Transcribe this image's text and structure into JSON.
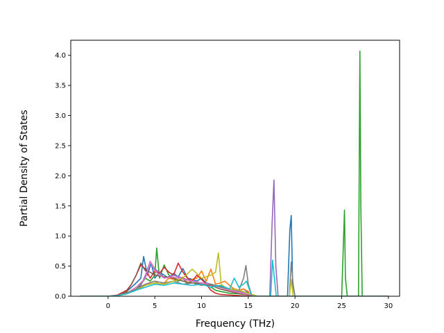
{
  "chart_data": {
    "type": "line",
    "xlabel": "Frequency (THz)",
    "ylabel": "Partial Density of States",
    "xlim": [
      -4.0,
      31.2
    ],
    "ylim": [
      0.0,
      4.25
    ],
    "xticks": [
      0,
      5,
      10,
      15,
      20,
      25,
      30
    ],
    "yticks": [
      0.0,
      0.5,
      1.0,
      1.5,
      2.0,
      2.5,
      3.0,
      3.5,
      4.0
    ],
    "xtick_labels": [
      "0",
      "5",
      "10",
      "15",
      "20",
      "25",
      "30"
    ],
    "ytick_labels": [
      "0.0",
      "0.5",
      "1.0",
      "1.5",
      "2.0",
      "2.5",
      "3.0",
      "3.5",
      "4.0"
    ],
    "grid": false,
    "legend": "none",
    "series": [
      {
        "color": "#1f77b4",
        "x": [
          -3.0,
          0.0,
          1.0,
          2.0,
          2.5,
          3.0,
          3.5,
          3.8,
          4.2,
          4.6,
          5.0,
          5.5,
          6.0,
          6.5,
          7.0,
          7.5,
          8.0,
          8.5,
          9.0,
          9.5,
          10.0,
          10.5,
          11.0,
          11.5,
          12.0,
          12.5,
          13.0,
          13.5,
          14.0,
          14.5,
          15.0,
          15.3,
          16.0,
          19.2,
          19.45,
          19.6,
          19.75,
          20.0,
          30.0
        ],
        "y": [
          0,
          0,
          0.01,
          0.08,
          0.15,
          0.22,
          0.3,
          0.66,
          0.35,
          0.55,
          0.3,
          0.4,
          0.35,
          0.3,
          0.38,
          0.32,
          0.46,
          0.3,
          0.28,
          0.25,
          0.3,
          0.22,
          0.2,
          0.18,
          0.17,
          0.15,
          0.12,
          0.12,
          0.1,
          0.12,
          0.06,
          0.0,
          0,
          0,
          1.1,
          1.34,
          0.2,
          0,
          0
        ]
      },
      {
        "color": "#ff7f0e",
        "x": [
          -3.0,
          0.0,
          1.0,
          2.0,
          3.0,
          3.5,
          4.0,
          4.5,
          5.0,
          5.5,
          6.0,
          6.5,
          7.0,
          7.5,
          8.0,
          8.5,
          9.0,
          9.5,
          10.0,
          10.5,
          11.0,
          11.5,
          12.0,
          12.5,
          13.0,
          13.5,
          14.0,
          14.5,
          15.0,
          15.3,
          16.0,
          30.0
        ],
        "y": [
          0,
          0,
          0.01,
          0.05,
          0.12,
          0.15,
          0.2,
          0.22,
          0.25,
          0.2,
          0.22,
          0.3,
          0.28,
          0.25,
          0.32,
          0.2,
          0.28,
          0.3,
          0.42,
          0.25,
          0.45,
          0.2,
          0.22,
          0.25,
          0.18,
          0.12,
          0.1,
          0.12,
          0.08,
          0.0,
          0,
          0
        ]
      },
      {
        "color": "#2ca02c",
        "x": [
          -3.0,
          0.0,
          1.0,
          2.0,
          3.0,
          3.5,
          4.0,
          4.5,
          5.0,
          5.2,
          5.5,
          6.0,
          6.5,
          7.0,
          7.5,
          8.0,
          8.5,
          9.0,
          9.5,
          10.0,
          10.5,
          11.0,
          11.5,
          12.0,
          13.0,
          14.0,
          15.0,
          16.0,
          25.0,
          25.3,
          25.4,
          25.6,
          26.0,
          26.8,
          26.95,
          27.05,
          27.2,
          27.5,
          30.0
        ],
        "y": [
          0,
          0,
          0.01,
          0.06,
          0.12,
          0.2,
          0.3,
          0.25,
          0.35,
          0.8,
          0.3,
          0.52,
          0.35,
          0.3,
          0.25,
          0.3,
          0.2,
          0.25,
          0.22,
          0.2,
          0.18,
          0.15,
          0.1,
          0.08,
          0.05,
          0.04,
          0.02,
          0,
          0,
          1.43,
          0.3,
          0,
          0,
          0,
          4.07,
          1.5,
          0,
          0,
          0
        ]
      },
      {
        "color": "#d62728",
        "x": [
          -3.0,
          0.0,
          1.0,
          2.0,
          2.5,
          3.0,
          3.5,
          4.0,
          4.5,
          5.0,
          5.5,
          6.0,
          6.5,
          7.0,
          7.5,
          8.0,
          8.5,
          9.0,
          9.5,
          10.0,
          10.5,
          11.0,
          11.5,
          12.0,
          13.0,
          14.0,
          15.0,
          16.0,
          30.0
        ],
        "y": [
          0,
          0,
          0.02,
          0.1,
          0.2,
          0.35,
          0.52,
          0.45,
          0.3,
          0.42,
          0.38,
          0.48,
          0.4,
          0.35,
          0.55,
          0.4,
          0.3,
          0.25,
          0.35,
          0.28,
          0.2,
          0.1,
          0.05,
          0.03,
          0.02,
          0.01,
          0.0,
          0,
          0
        ]
      },
      {
        "color": "#9467bd",
        "x": [
          -3.0,
          0.0,
          1.0,
          2.0,
          3.0,
          3.5,
          4.0,
          4.5,
          5.0,
          5.5,
          6.0,
          7.0,
          8.0,
          9.0,
          10.0,
          11.0,
          12.0,
          13.0,
          14.0,
          15.0,
          16.0,
          17.3,
          17.55,
          17.75,
          17.95,
          18.2,
          30.0
        ],
        "y": [
          0,
          0,
          0.01,
          0.05,
          0.12,
          0.18,
          0.35,
          0.58,
          0.45,
          0.4,
          0.3,
          0.35,
          0.3,
          0.25,
          0.22,
          0.2,
          0.15,
          0.1,
          0.08,
          0.05,
          0,
          0,
          1.2,
          1.93,
          0.5,
          0,
          0
        ]
      },
      {
        "color": "#8c564b",
        "x": [
          -3.0,
          0.0,
          1.0,
          2.0,
          2.5,
          3.0,
          3.5,
          4.0,
          4.5,
          5.0,
          6.0,
          7.0,
          8.0,
          9.0,
          10.0,
          11.0,
          12.0,
          13.0,
          14.0,
          15.0,
          16.0,
          30.0
        ],
        "y": [
          0,
          0,
          0.01,
          0.08,
          0.2,
          0.35,
          0.55,
          0.42,
          0.4,
          0.35,
          0.32,
          0.3,
          0.25,
          0.22,
          0.2,
          0.18,
          0.12,
          0.08,
          0.05,
          0.02,
          0,
          0
        ]
      },
      {
        "color": "#e377c2",
        "x": [
          -3.0,
          0.0,
          1.0,
          2.0,
          3.0,
          4.0,
          4.5,
          5.0,
          5.5,
          6.0,
          7.0,
          8.0,
          9.0,
          10.0,
          11.0,
          12.0,
          13.0,
          14.0,
          15.0,
          16.0,
          30.0
        ],
        "y": [
          0,
          0,
          0.01,
          0.05,
          0.15,
          0.3,
          0.58,
          0.42,
          0.35,
          0.3,
          0.32,
          0.28,
          0.25,
          0.22,
          0.2,
          0.15,
          0.1,
          0.06,
          0.03,
          0,
          0
        ]
      },
      {
        "color": "#7f7f7f",
        "x": [
          -3.0,
          0.0,
          1.0,
          2.0,
          3.0,
          4.0,
          5.0,
          6.0,
          7.0,
          8.0,
          9.0,
          10.0,
          11.0,
          12.0,
          13.0,
          14.0,
          14.5,
          14.75,
          15.0,
          15.4,
          16.0,
          19.4,
          19.6,
          19.8,
          20.0,
          30.0
        ],
        "y": [
          0,
          0,
          0.01,
          0.05,
          0.12,
          0.2,
          0.25,
          0.22,
          0.25,
          0.2,
          0.22,
          0.18,
          0.2,
          0.15,
          0.12,
          0.1,
          0.3,
          0.51,
          0.2,
          0,
          0,
          0,
          0.57,
          0.2,
          0,
          0
        ]
      },
      {
        "color": "#bcbd22",
        "x": [
          -3.0,
          0.0,
          1.0,
          2.0,
          3.0,
          4.0,
          5.0,
          6.0,
          7.0,
          8.0,
          9.0,
          10.0,
          11.0,
          11.5,
          11.8,
          12.1,
          12.5,
          13.0,
          14.0,
          15.0,
          16.0,
          19.4,
          19.6,
          19.8,
          30.0
        ],
        "y": [
          0,
          0,
          0.01,
          0.04,
          0.1,
          0.18,
          0.22,
          0.2,
          0.25,
          0.3,
          0.45,
          0.3,
          0.35,
          0.4,
          0.72,
          0.2,
          0.15,
          0.12,
          0.1,
          0.05,
          0,
          0,
          0.28,
          0,
          0
        ]
      },
      {
        "color": "#17becf",
        "x": [
          -3.0,
          0.0,
          1.0,
          2.0,
          3.0,
          4.0,
          5.0,
          6.0,
          7.0,
          8.0,
          9.0,
          10.0,
          11.0,
          12.0,
          13.0,
          13.5,
          14.0,
          14.5,
          14.8,
          15.1,
          15.4,
          16.0,
          17.4,
          17.6,
          17.8,
          18.0,
          30.0
        ],
        "y": [
          0,
          0,
          0.01,
          0.04,
          0.1,
          0.15,
          0.2,
          0.18,
          0.22,
          0.2,
          0.18,
          0.2,
          0.15,
          0.18,
          0.12,
          0.3,
          0.15,
          0.2,
          0.25,
          0.12,
          0.0,
          0,
          0,
          0.6,
          0.3,
          0,
          0
        ]
      }
    ]
  }
}
